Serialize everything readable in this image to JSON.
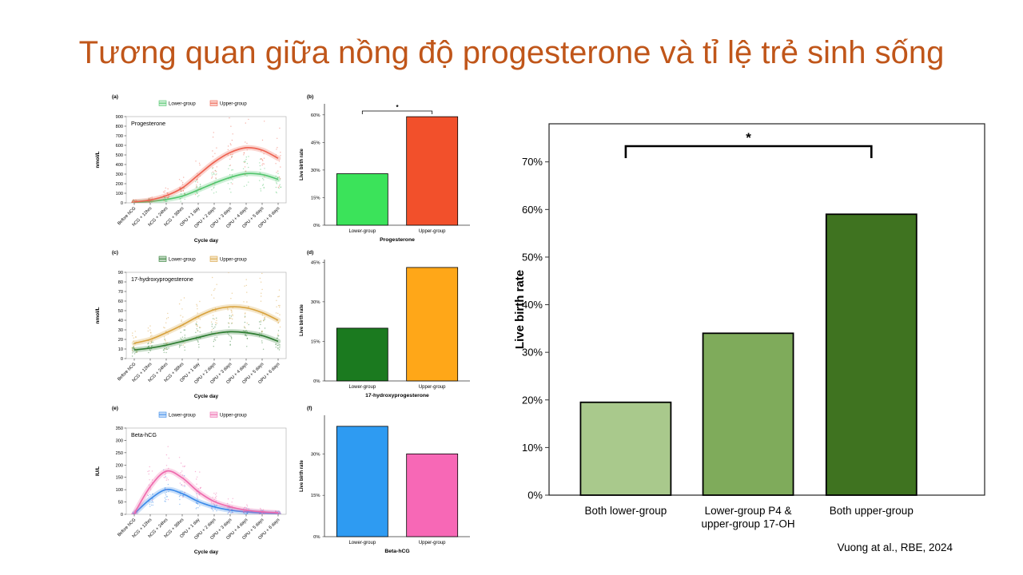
{
  "slide": {
    "title": "Tương quan giữa nồng độ progesterone và tỉ lệ trẻ sinh sống",
    "title_color": "#C0561A",
    "citation": "Vuong at al., RBE, 2024",
    "background": "#FFFFFF"
  },
  "chart_data": [
    {
      "panel": "(a)",
      "type": "line",
      "title": "Progesterone",
      "xlabel": "Cycle day",
      "ylabel": "nmol/L",
      "ylim": [
        0,
        900
      ],
      "yticks": [
        0,
        100,
        200,
        300,
        400,
        500,
        600,
        700,
        800,
        900
      ],
      "categories": [
        "Before hCG",
        "hCG + 12hrs",
        "hCG + 24hrs",
        "hCG + 36hrs",
        "OPU + 1 day",
        "OPU + 2 days",
        "OPU + 3 days",
        "OPU + 4 days",
        "OPU + 5 days",
        "OPU + 6 days"
      ],
      "legend_position": "top",
      "show_scatter": true,
      "series": [
        {
          "name": "Lower-group",
          "color": "#53C66E",
          "values": [
            5,
            15,
            35,
            70,
            135,
            205,
            265,
            305,
            295,
            245
          ]
        },
        {
          "name": "Upper-group",
          "color": "#EE6352",
          "values": [
            10,
            30,
            75,
            155,
            290,
            425,
            525,
            575,
            550,
            465
          ]
        }
      ]
    },
    {
      "panel": "(b)",
      "type": "bar",
      "title": "Progesterone",
      "ylabel": "Live birth rate",
      "categories": [
        "Lower-group",
        "Upper-group"
      ],
      "values": [
        28,
        59
      ],
      "colors": [
        "#3BE35A",
        "#F2502B"
      ],
      "yticks": [
        0,
        15,
        30,
        45,
        60
      ],
      "ylim": [
        0,
        66
      ],
      "ytick_suffix": "%",
      "significance": {
        "from": 0,
        "to": 1,
        "label": "*"
      }
    },
    {
      "panel": "(c)",
      "type": "line",
      "title": "17-hydroxyprogesterone",
      "xlabel": "Cycle day",
      "ylabel": "nmol/L",
      "ylim": [
        0,
        90
      ],
      "yticks": [
        0,
        10,
        20,
        30,
        40,
        50,
        60,
        70,
        80,
        90
      ],
      "categories": [
        "Before hCG",
        "hCG + 12hrs",
        "hCG + 24hrs",
        "hCG + 36hrs",
        "OPU + 1 day",
        "OPU + 2 days",
        "OPU + 3 days",
        "OPU + 4 days",
        "OPU + 5 days",
        "OPU + 6 days"
      ],
      "legend_position": "top",
      "show_scatter": true,
      "series": [
        {
          "name": "Lower-group",
          "color": "#2E7D32",
          "values": [
            9,
            11,
            14,
            18,
            22,
            26,
            28,
            27,
            24,
            18
          ]
        },
        {
          "name": "Upper-group",
          "color": "#D9A441",
          "values": [
            16,
            20,
            27,
            35,
            44,
            51,
            54,
            53,
            48,
            40
          ]
        }
      ]
    },
    {
      "panel": "(d)",
      "type": "bar",
      "title": "17-hydroxyprogesterone",
      "ylabel": "Live birth rate",
      "categories": [
        "Lower-group",
        "Upper-group"
      ],
      "values": [
        20,
        43
      ],
      "colors": [
        "#1B7A1F",
        "#FFA718"
      ],
      "yticks": [
        0,
        15,
        30,
        45
      ],
      "ylim": [
        0,
        46
      ],
      "ytick_suffix": "%"
    },
    {
      "panel": "(e)",
      "type": "line",
      "title": "Beta-hCG",
      "xlabel": "Cycle day",
      "ylabel": "IU/L",
      "ylim": [
        0,
        350
      ],
      "yticks": [
        0,
        50,
        100,
        150,
        200,
        250,
        300,
        350
      ],
      "categories": [
        "Before hCG",
        "hCG + 12hrs",
        "hCG + 24hrs",
        "hCG + 36hrs",
        "OPU + 1 day",
        "OPU + 2 days",
        "OPU + 3 days",
        "OPU + 4 days",
        "OPU + 5 days",
        "OPU + 6 days"
      ],
      "legend_position": "top",
      "show_scatter": true,
      "series": [
        {
          "name": "Lower-group",
          "color": "#3D8BEA",
          "values": [
            2,
            62,
            100,
            84,
            52,
            30,
            17,
            10,
            6,
            4
          ]
        },
        {
          "name": "Upper-group",
          "color": "#EF6BAE",
          "values": [
            3,
            112,
            175,
            148,
            92,
            52,
            30,
            17,
            10,
            6
          ]
        }
      ]
    },
    {
      "panel": "(f)",
      "type": "bar",
      "title": "Beta-hCG",
      "ylabel": "Live birth rate",
      "categories": [
        "Lower-group",
        "Upper-group"
      ],
      "values": [
        40,
        30
      ],
      "colors": [
        "#2E9BF2",
        "#F768B6"
      ],
      "yticks": [
        0,
        15,
        30
      ],
      "ylim": [
        0,
        44
      ],
      "ytick_suffix": "%"
    },
    {
      "panel": "main",
      "type": "bar",
      "title": "",
      "ylabel": "Live birth rate",
      "categories": [
        "Both lower-group",
        [
          "Lower-group P4 &",
          "upper-group 17-OH"
        ],
        "Both upper-group"
      ],
      "values": [
        19.5,
        34,
        59
      ],
      "colors": [
        "#A9C98C",
        "#7FAB5B",
        "#3F7320"
      ],
      "yticks": [
        0,
        10,
        20,
        30,
        40,
        50,
        60,
        70
      ],
      "ylim": [
        0,
        78
      ],
      "ytick_suffix": "%",
      "significance": {
        "from": 0,
        "to": 2,
        "label": "*"
      }
    }
  ]
}
